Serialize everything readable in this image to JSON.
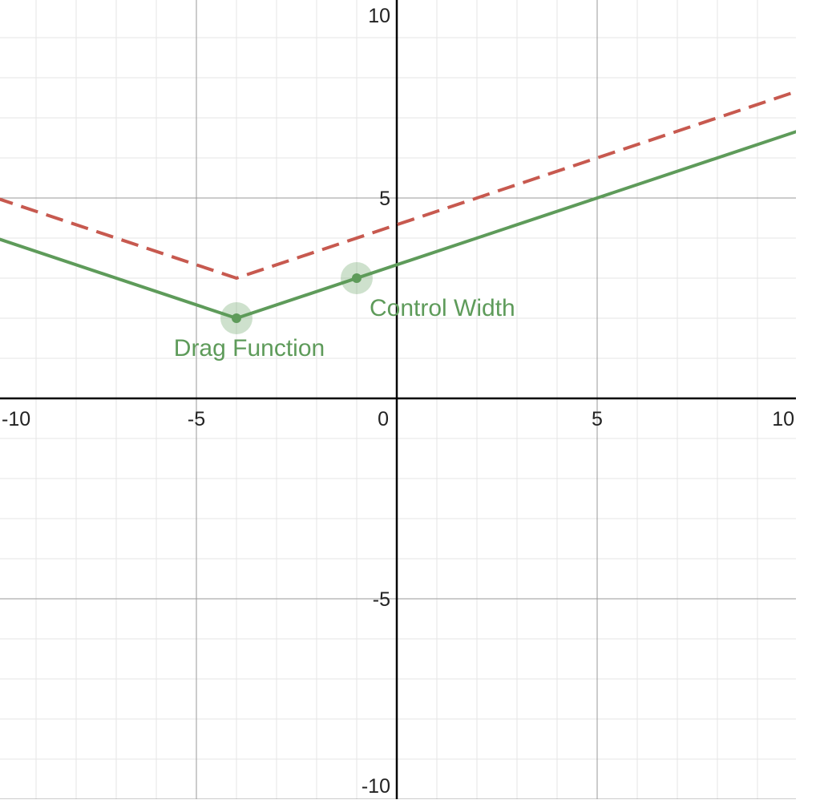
{
  "chart_data": {
    "type": "line",
    "xlim": [
      -10,
      10
    ],
    "ylim": [
      -10,
      10
    ],
    "xticks": [
      -10,
      -5,
      0,
      5,
      10
    ],
    "yticks": [
      -10,
      -5,
      5,
      10
    ],
    "grid": true,
    "minor_grid_step": 1,
    "series": [
      {
        "color": "#c7594f",
        "dashed": true,
        "x": [
          -10,
          -4,
          10
        ],
        "values": [
          5,
          3,
          7.667
        ]
      },
      {
        "color": "#5e9b5a",
        "dashed": false,
        "x": [
          -10,
          -4,
          10
        ],
        "values": [
          4,
          2,
          6.667
        ]
      }
    ],
    "points": [
      {
        "x": -4,
        "y": 2,
        "label": "Drag Function",
        "color": "#5e9b5a"
      },
      {
        "x": -1,
        "y": 3,
        "label": "Control Width",
        "color": "#5e9b5a"
      }
    ]
  }
}
